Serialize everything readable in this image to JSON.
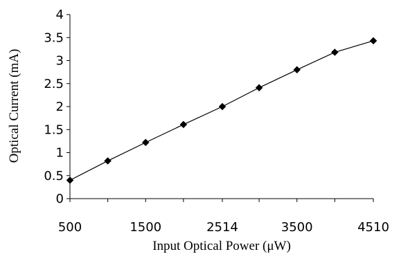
{
  "chart_data": {
    "type": "line",
    "title": "",
    "xlabel": "Input Optical Power (μW)",
    "ylabel": "Optical Current (mA)",
    "x_tick_labels": [
      "500",
      "1500",
      "2514",
      "3500",
      "4510"
    ],
    "y_tick_labels": [
      "0",
      "0.5",
      "1",
      "1.5",
      "2",
      "2.5",
      "3",
      "3.5",
      "4"
    ],
    "ylim": [
      0,
      4
    ],
    "grid": false,
    "legend": "none",
    "marker": "diamond",
    "color": "#000000",
    "series": [
      {
        "x": [
          500,
          1000,
          1500,
          2000,
          2514,
          3000,
          3500,
          4000,
          4510
        ],
        "y": [
          0.4,
          0.82,
          1.22,
          1.61,
          2.0,
          2.41,
          2.8,
          3.18,
          3.43
        ]
      }
    ]
  }
}
